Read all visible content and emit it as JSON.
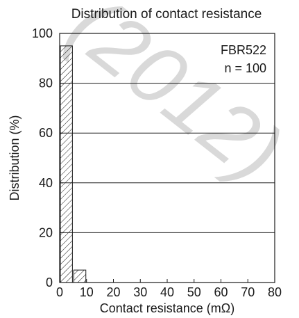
{
  "chart_data": {
    "type": "bar",
    "title": "Distribution of contact resistance",
    "xlabel": "Contact resistance (mΩ)",
    "ylabel": "Distribution (%)",
    "xlim": [
      0,
      80
    ],
    "ylim": [
      0,
      100
    ],
    "xticks": [
      0,
      10,
      20,
      30,
      40,
      50,
      60,
      70,
      80
    ],
    "yticks": [
      0,
      20,
      40,
      60,
      80,
      100
    ],
    "grid": "horizontal",
    "bar_fill": "diagonal-hatch",
    "bins": [
      {
        "x0": 0,
        "x1": 5,
        "value": 95
      },
      {
        "x0": 5,
        "x1": 10,
        "value": 5
      }
    ],
    "annotations": [
      "FBR522",
      "n = 100"
    ],
    "watermark": "(2012)",
    "colors": {
      "ink": "#1a1a1a",
      "watermark": "#d9d9d9"
    }
  }
}
